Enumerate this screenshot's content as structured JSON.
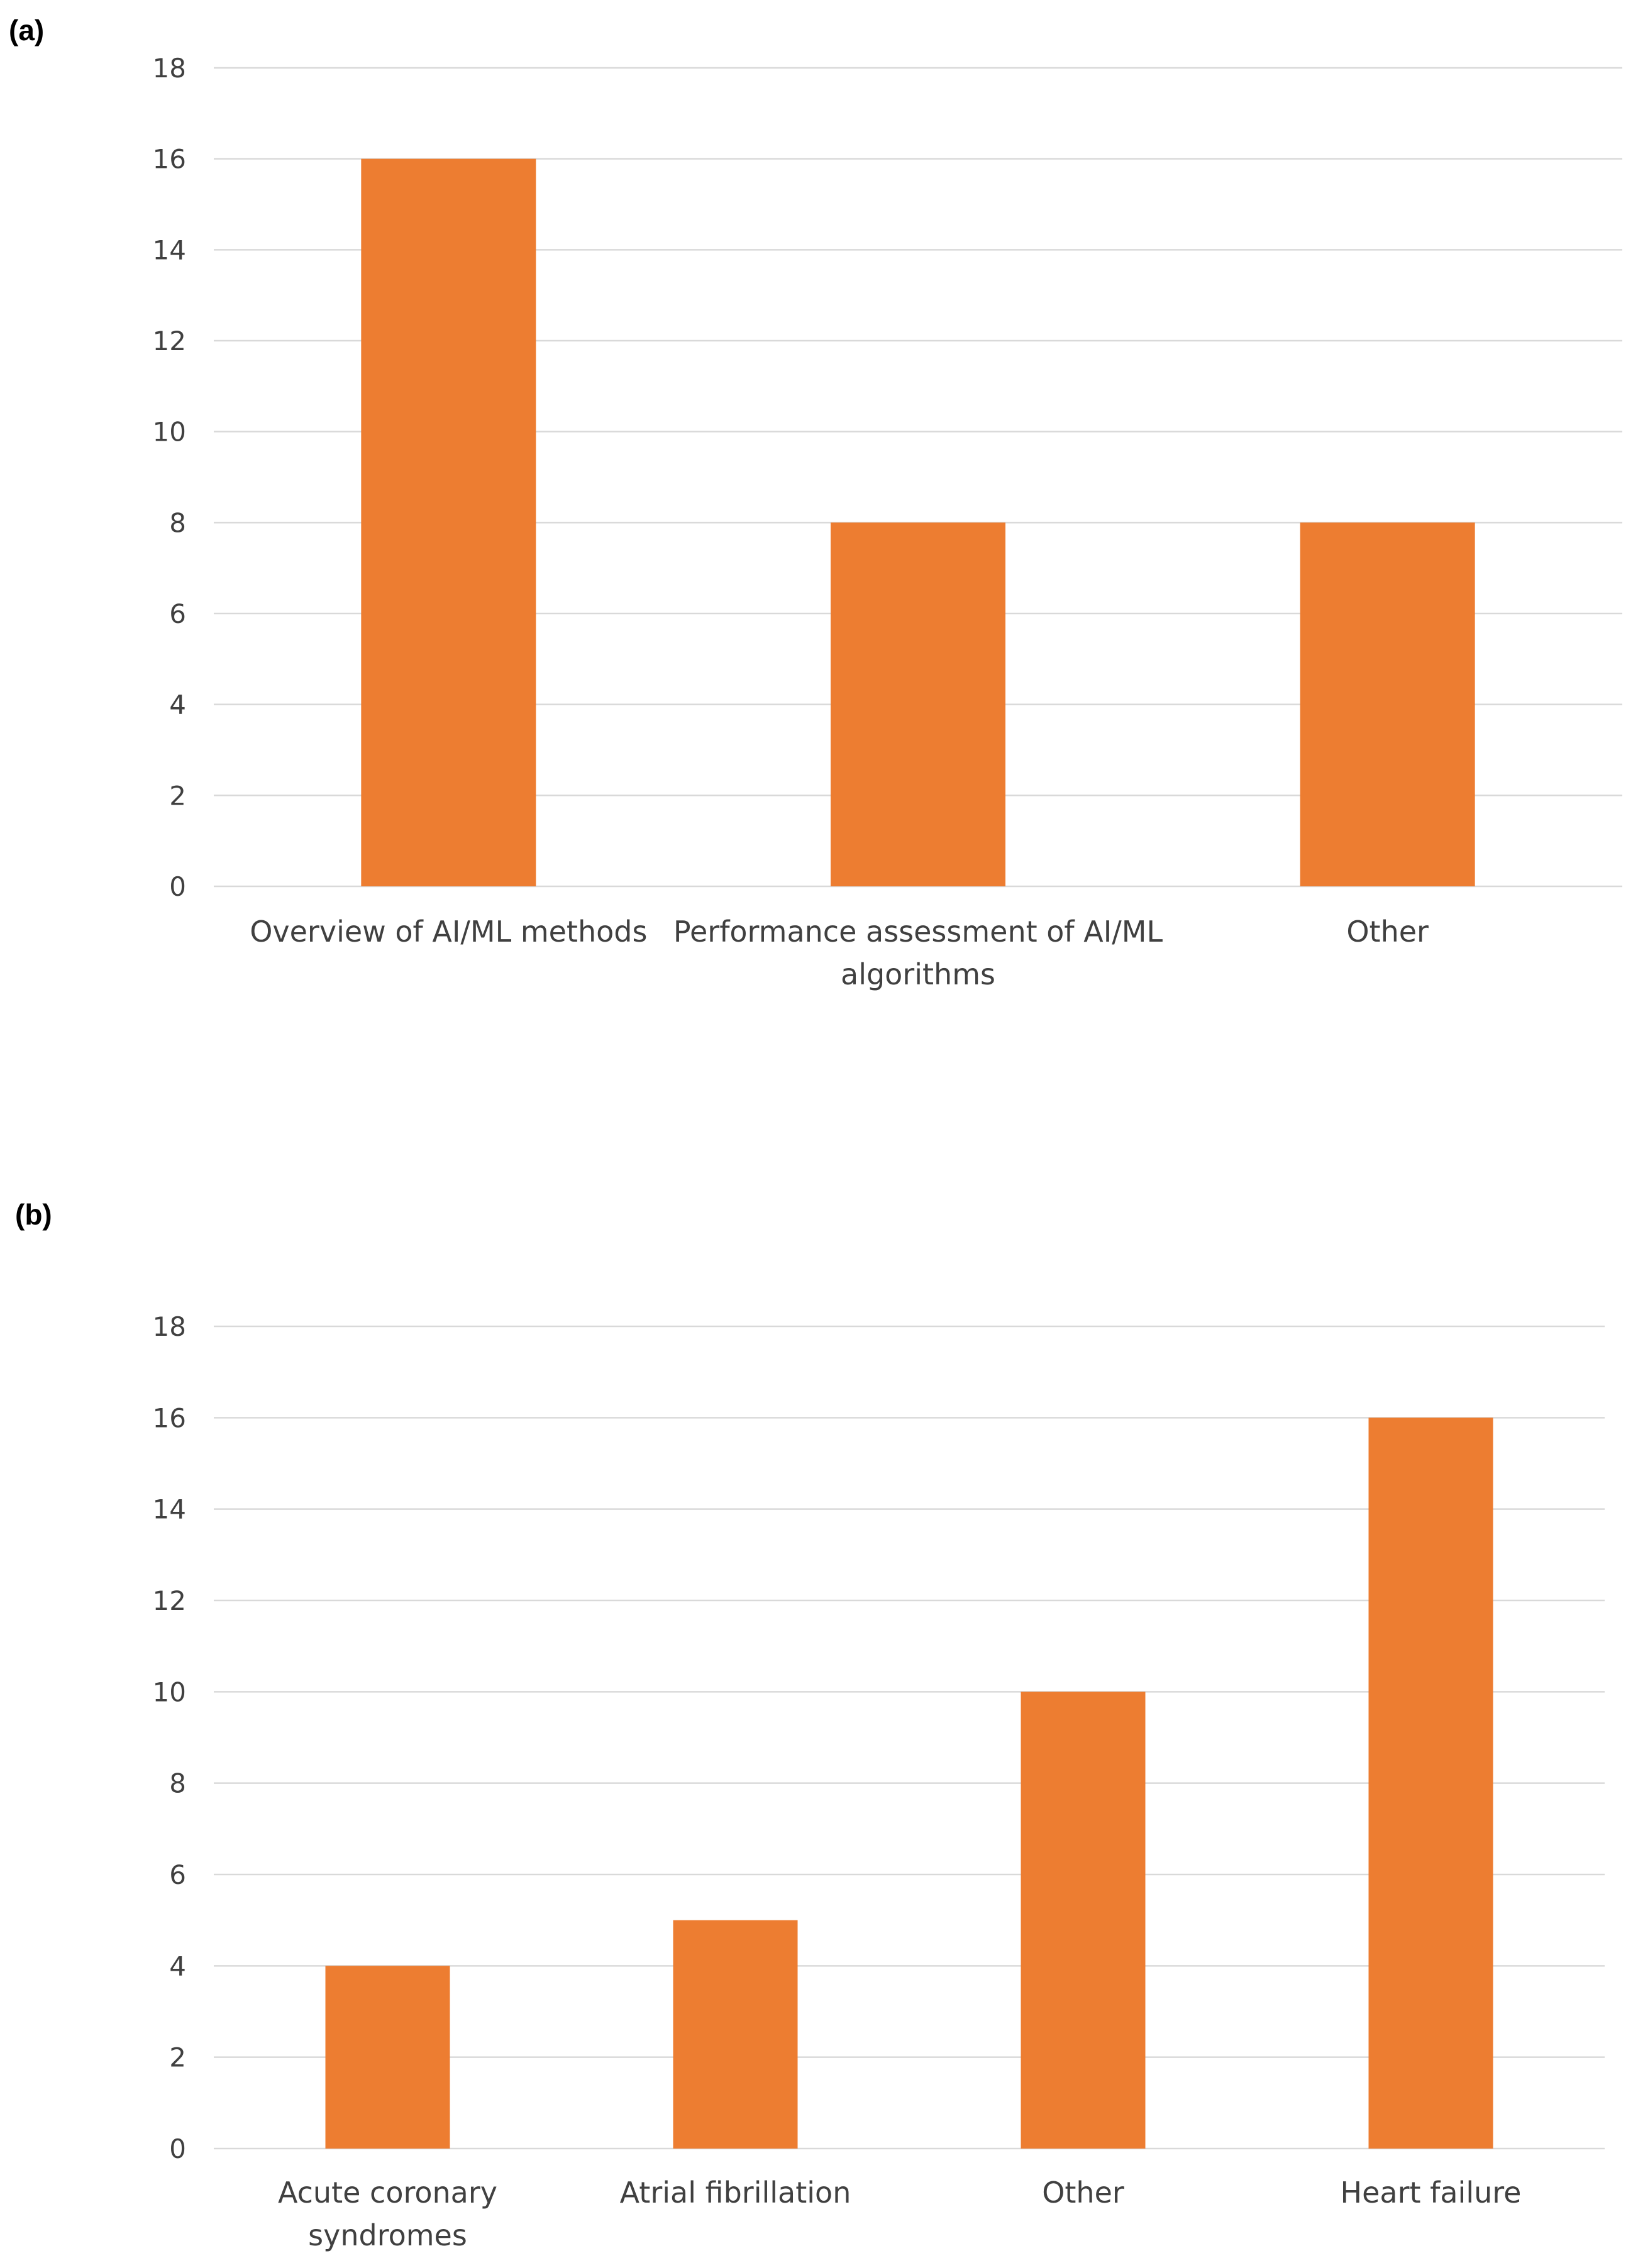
{
  "chart_data": [
    {
      "panel_label": "(a)",
      "type": "bar",
      "categories": [
        [
          "Overview of AI/ML methods"
        ],
        [
          "Performance assessment of AI/ML",
          "algorithms"
        ],
        [
          "Other"
        ]
      ],
      "values": [
        16,
        8,
        8
      ],
      "ylim": [
        0,
        18
      ],
      "yticks": [
        0,
        2,
        4,
        6,
        8,
        10,
        12,
        14,
        16,
        18
      ],
      "grid": true,
      "title": "",
      "xlabel": "",
      "ylabel": "",
      "bar_color": "#ED7D31"
    },
    {
      "panel_label": "(b)",
      "type": "bar",
      "categories": [
        [
          "Acute coronary",
          "syndromes"
        ],
        [
          "Atrial fibrillation"
        ],
        [
          "Other"
        ],
        [
          "Heart failure"
        ]
      ],
      "values": [
        4,
        5,
        10,
        16
      ],
      "ylim": [
        0,
        18
      ],
      "yticks": [
        0,
        2,
        4,
        6,
        8,
        10,
        12,
        14,
        16,
        18
      ],
      "grid": true,
      "title": "",
      "xlabel": "",
      "ylabel": "",
      "bar_color": "#ED7D31"
    }
  ]
}
